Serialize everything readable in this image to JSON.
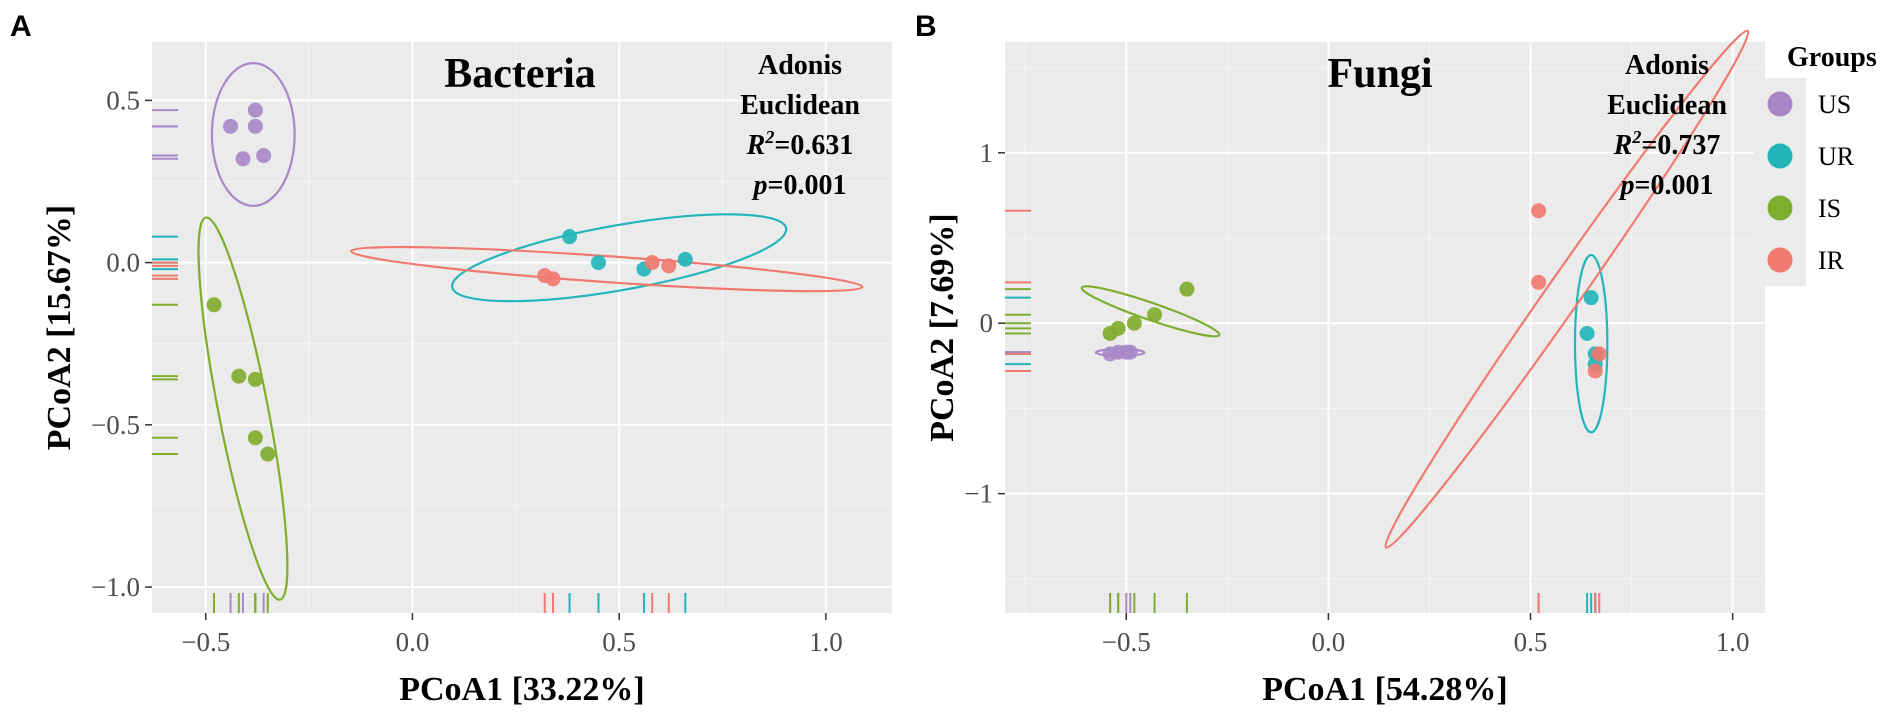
{
  "legend": {
    "title": "Groups",
    "items": [
      {
        "label": "US",
        "color": "#A889C8"
      },
      {
        "label": "UR",
        "color": "#22B5BA"
      },
      {
        "label": "IS",
        "color": "#7FAD2E"
      },
      {
        "label": "IR",
        "color": "#F07A70"
      }
    ]
  },
  "chart_data": [
    {
      "type": "scatter",
      "panel_label": "A",
      "title": "Bacteria",
      "xlabel": "PCoA1 [33.22%]",
      "ylabel": "PCoA2 [15.67%]",
      "xlim": [
        -0.63,
        1.16
      ],
      "ylim": [
        -1.08,
        0.68
      ],
      "xticks": [
        -0.5,
        0.0,
        0.5,
        1.0
      ],
      "xtick_labels": [
        "−0.5",
        "0.0",
        "0.5",
        "1.0"
      ],
      "yticks": [
        -1.0,
        -0.5,
        0.0,
        0.5
      ],
      "ytick_labels": [
        "−1.0",
        "−0.5",
        "0.0",
        "0.5"
      ],
      "annotation": {
        "line1": "Adonis",
        "line2": "Euclidean",
        "r2_sym": "R",
        "r2_sup": "2",
        "r2_val": "=0.631",
        "p_sym": "p",
        "p_val": "=0.001"
      },
      "series": [
        {
          "name": "US",
          "points": [
            [
              -0.44,
              0.42
            ],
            [
              -0.38,
              0.47
            ],
            [
              -0.38,
              0.42
            ],
            [
              -0.41,
              0.32
            ],
            [
              -0.36,
              0.33
            ]
          ],
          "ellipse": {
            "cx": -0.385,
            "cy": 0.395,
            "rx": 0.1,
            "ry": 0.22,
            "angle_deg": 0
          }
        },
        {
          "name": "UR",
          "points": [
            [
              0.38,
              0.08
            ],
            [
              0.45,
              0.0
            ],
            [
              0.56,
              -0.02
            ],
            [
              0.66,
              0.01
            ]
          ],
          "ellipse": {
            "cx": 0.5,
            "cy": 0.015,
            "rx": 0.41,
            "ry": 0.1,
            "angle_deg": -10
          }
        },
        {
          "name": "IS",
          "points": [
            [
              -0.48,
              -0.13
            ],
            [
              -0.42,
              -0.35
            ],
            [
              -0.38,
              -0.36
            ],
            [
              -0.38,
              -0.54
            ],
            [
              -0.35,
              -0.59
            ]
          ],
          "ellipse": {
            "cx": -0.41,
            "cy": -0.45,
            "rx": 0.06,
            "ry": 0.6,
            "angle_deg": -11
          }
        },
        {
          "name": "IR",
          "points": [
            [
              0.32,
              -0.04
            ],
            [
              0.34,
              -0.05
            ],
            [
              0.58,
              0.0
            ],
            [
              0.62,
              -0.01
            ]
          ],
          "ellipse": {
            "cx": 0.47,
            "cy": -0.02,
            "rx": 0.62,
            "ry": 0.04,
            "angle_deg": 4
          }
        }
      ]
    },
    {
      "type": "scatter",
      "panel_label": "B",
      "title": "Fungi",
      "xlabel": "PCoA1 [54.28%]",
      "ylabel": "PCoA2 [7.69%]",
      "xlim": [
        -0.8,
        1.08
      ],
      "ylim": [
        -1.7,
        1.65
      ],
      "xticks": [
        -0.5,
        0.0,
        0.5,
        1.0
      ],
      "xtick_labels": [
        "−0.5",
        "0.0",
        "0.5",
        "1.0"
      ],
      "yticks": [
        -1,
        0,
        1
      ],
      "ytick_labels": [
        "−1",
        "0",
        "1"
      ],
      "annotation": {
        "line1": "Adonis",
        "line2": "Euclidean",
        "r2_sym": "R",
        "r2_sup": "2",
        "r2_val": "=0.737",
        "p_sym": "p",
        "p_val": "=0.001"
      },
      "series": [
        {
          "name": "US",
          "points": [
            [
              -0.54,
              -0.18
            ],
            [
              -0.52,
              -0.17
            ],
            [
              -0.5,
              -0.17
            ],
            [
              -0.49,
              -0.17
            ]
          ],
          "ellipse": {
            "cx": -0.515,
            "cy": -0.172,
            "rx": 0.06,
            "ry": 0.02,
            "angle_deg": 0
          }
        },
        {
          "name": "UR",
          "points": [
            [
              0.65,
              0.15
            ],
            [
              0.64,
              -0.06
            ],
            [
              0.66,
              -0.18
            ],
            [
              0.66,
              -0.24
            ]
          ],
          "ellipse": {
            "cx": 0.65,
            "cy": -0.12,
            "rx": 0.04,
            "ry": 0.52,
            "angle_deg": 0
          }
        },
        {
          "name": "IS",
          "points": [
            [
              -0.54,
              -0.06
            ],
            [
              -0.52,
              -0.03
            ],
            [
              -0.48,
              0.0
            ],
            [
              -0.43,
              0.05
            ],
            [
              -0.35,
              0.2
            ]
          ],
          "ellipse": {
            "cx": -0.44,
            "cy": 0.07,
            "rx": 0.18,
            "ry": 0.05,
            "angle_deg": 19
          }
        },
        {
          "name": "IR",
          "points": [
            [
              0.52,
              0.66
            ],
            [
              0.52,
              0.24
            ],
            [
              0.66,
              -0.28
            ],
            [
              0.67,
              -0.18
            ]
          ],
          "ellipse": {
            "cx": 0.59,
            "cy": 0.2,
            "rx": 0.78,
            "ry": 0.1,
            "angle_deg": -55
          }
        }
      ]
    }
  ]
}
